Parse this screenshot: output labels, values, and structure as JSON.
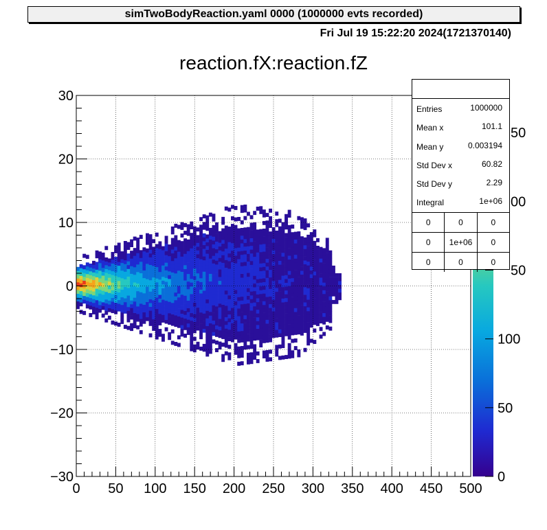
{
  "header": {
    "title": "simTwoBodyReaction.yaml  0000 (1000000 evts recorded)"
  },
  "date_label": "Fri Jul 19 15:22:20 2024(1721370140)",
  "chart_data": {
    "type": "heatmap",
    "title": "reaction.fX:reaction.fZ",
    "xlabel": "",
    "ylabel": "",
    "xlim": [
      0,
      500
    ],
    "ylim": [
      -30,
      30
    ],
    "x_ticks": [
      "0",
      "50",
      "100",
      "150",
      "200",
      "250",
      "300",
      "350",
      "400",
      "450",
      "500"
    ],
    "y_ticks": [
      "30",
      "20",
      "10",
      "0",
      "−10",
      "−20",
      "−30"
    ],
    "grid": true,
    "colorbar": {
      "ticks": [
        "0",
        "50",
        "100",
        "150",
        "200",
        "250"
      ],
      "visible_ticks": [
        "0",
        "50",
        "100"
      ],
      "partial_ticks": [
        "50",
        "00",
        "50"
      ],
      "palette": "kBird"
    },
    "density_shape": {
      "description_points": [
        {
          "x": 0,
          "half_width": 3
        },
        {
          "x": 100,
          "half_width": 6
        },
        {
          "x": 200,
          "half_width": 9
        },
        {
          "x": 280,
          "half_width": 8
        },
        {
          "x": 320,
          "half_width": 5
        }
      ],
      "peak_x": 20,
      "peak_y": 0
    }
  },
  "stats": {
    "rows": [
      {
        "key": "Entries",
        "value": "1000000"
      },
      {
        "key": "Mean x",
        "value": "101.1"
      },
      {
        "key": "Mean y",
        "value": "0.003194"
      },
      {
        "key": "Std Dev x",
        "value": "60.82"
      },
      {
        "key": "Std Dev y",
        "value": "2.29"
      },
      {
        "key": "Integral",
        "value": "1e+06"
      }
    ],
    "grid": [
      [
        "0",
        "0",
        "0"
      ],
      [
        "0",
        "1e+06",
        "0"
      ],
      [
        "0",
        "0",
        "0"
      ]
    ]
  }
}
